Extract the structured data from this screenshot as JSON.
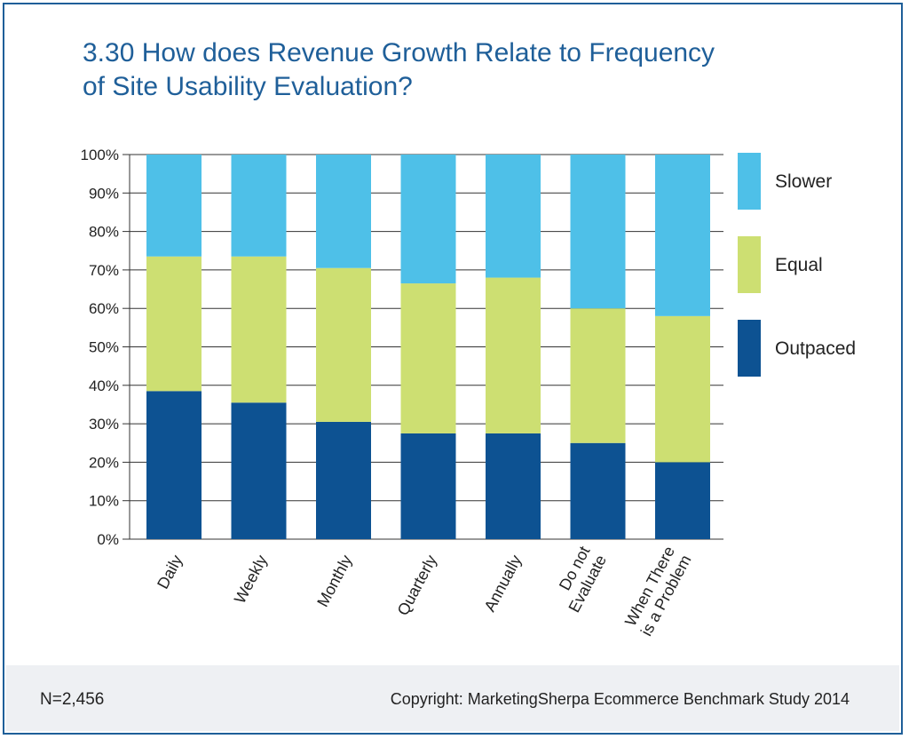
{
  "title_lines": [
    "3.30 How does Revenue Growth Relate to Frequency",
    "of Site Usability Evaluation?"
  ],
  "footer": {
    "n": "N=2,456",
    "copyright": "Copyright: MarketingSherpa Ecommerce Benchmark Study 2014"
  },
  "colors": {
    "frame": "#1f5f99",
    "title": "#1f5f99",
    "Outpaced": "#0d5292",
    "Equal": "#cddf72",
    "Slower": "#4ec0e8",
    "grid": "#333333"
  },
  "chart_data": {
    "type": "bar",
    "stacked": true,
    "categories": [
      [
        "Daily"
      ],
      [
        "Weekly"
      ],
      [
        "Monthly"
      ],
      [
        "Quarterly"
      ],
      [
        "Annually"
      ],
      [
        "Do not",
        "Evaluate"
      ],
      [
        "When There",
        "is a Problem"
      ]
    ],
    "series": [
      {
        "name": "Outpaced",
        "values": [
          38.5,
          35.5,
          30.5,
          27.5,
          27.5,
          25,
          20
        ]
      },
      {
        "name": "Equal",
        "values": [
          35,
          38,
          40,
          39,
          40.5,
          35,
          38
        ]
      },
      {
        "name": "Slower",
        "values": [
          26.5,
          26.5,
          29.5,
          33.5,
          32,
          40,
          42
        ]
      }
    ],
    "legend_order": [
      "Slower",
      "Equal",
      "Outpaced"
    ],
    "legend_position": "right",
    "yticks": [
      "0%",
      "10%",
      "20%",
      "30%",
      "40%",
      "50%",
      "60%",
      "70%",
      "80%",
      "90%",
      "100%"
    ],
    "ylim": [
      0,
      100
    ],
    "grid": true
  }
}
